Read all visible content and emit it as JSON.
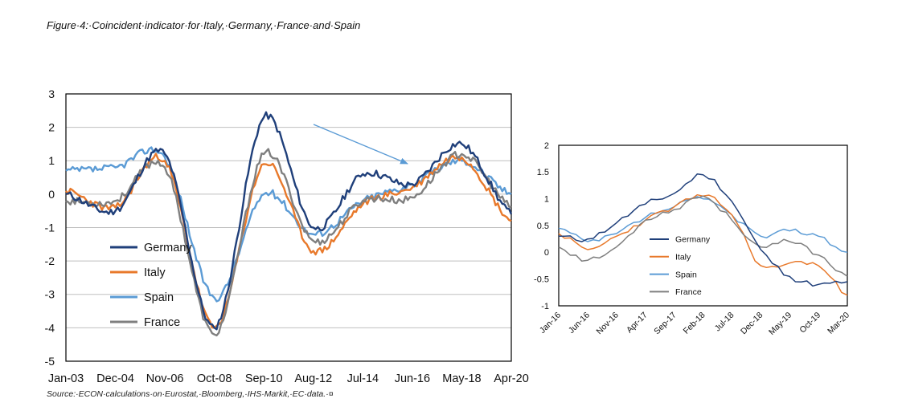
{
  "figure": {
    "title": "Figure·4:·Coincident·indicator·for·Italy,·Germany,·France·and·Spain",
    "source": "Source:·ECON·calculations·on·Eurostat,·Bloomberg,·IHS·Markit,·EC·data.·¤"
  },
  "colors": {
    "Germany": "#1f3f7a",
    "Italy": "#e8792b",
    "Spain": "#5b9bd5",
    "France": "#7f7f7f",
    "arrow": "#5b9bd5"
  },
  "chart_data": [
    {
      "type": "line",
      "title": "",
      "xlabel": "",
      "ylabel": "",
      "x": [
        "Jan-03",
        "Dec-04",
        "Nov-06",
        "Oct-08",
        "Sep-10",
        "Aug-12",
        "Jul-14",
        "Jun-16",
        "May-18",
        "Apr-20"
      ],
      "x_tick_labels": [
        "Jan-03",
        "Dec-04",
        "Nov-06",
        "Oct-08",
        "Sep-10",
        "Aug-12",
        "Jul-14",
        "Jun-16",
        "May-18",
        "Apr-20"
      ],
      "ylim": [
        -5,
        3
      ],
      "y_ticks": [
        3,
        2,
        1,
        0,
        -1,
        -2,
        -3,
        -4,
        -5
      ],
      "grid": true,
      "legend_position": "left",
      "series": [
        {
          "name": "Germany",
          "values": [
            0.0,
            -0.5,
            1.2,
            -4.0,
            2.3,
            -1.0,
            0.6,
            0.3,
            1.5,
            -0.6
          ]
        },
        {
          "name": "Italy",
          "values": [
            0.1,
            -0.4,
            1.0,
            -4.0,
            0.9,
            -1.7,
            -0.3,
            0.2,
            1.1,
            -0.8
          ]
        },
        {
          "name": "Spain",
          "values": [
            0.7,
            0.8,
            1.1,
            -3.1,
            0.0,
            -1.2,
            -0.2,
            0.3,
            1.0,
            0.0
          ]
        },
        {
          "name": "France",
          "values": [
            -0.2,
            -0.2,
            0.8,
            -4.2,
            1.2,
            -1.4,
            -0.2,
            -0.1,
            1.2,
            -0.4
          ]
        }
      ]
    },
    {
      "type": "line",
      "title": "",
      "xlabel": "",
      "ylabel": "",
      "x": [
        "Jan-16",
        "Jun-16",
        "Nov-16",
        "Apr-17",
        "Sep-17",
        "Feb-18",
        "Jul-18",
        "Dec-18",
        "May-19",
        "Oct-19",
        "Mar-20"
      ],
      "x_tick_labels": [
        "Jan-16",
        "Jun-16",
        "Nov-16",
        "Apr-17",
        "Sep-17",
        "Feb-18",
        "Jul-18",
        "Dec-18",
        "May-19",
        "Oct-19",
        "Mar-20"
      ],
      "ylim": [
        -1,
        2
      ],
      "y_ticks": [
        2,
        1.5,
        1,
        0.5,
        0,
        -0.5,
        -1
      ],
      "grid": false,
      "legend_position": "bottom-left",
      "series": [
        {
          "name": "Germany",
          "values": [
            0.3,
            0.25,
            0.55,
            0.9,
            1.1,
            1.45,
            0.95,
            0.05,
            -0.45,
            -0.6,
            -0.55
          ]
        },
        {
          "name": "Italy",
          "values": [
            0.35,
            0.05,
            0.3,
            0.6,
            0.85,
            1.05,
            0.7,
            -0.25,
            -0.2,
            -0.25,
            -0.8
          ]
        },
        {
          "name": "Spain",
          "values": [
            0.45,
            0.2,
            0.35,
            0.65,
            0.85,
            1.0,
            0.7,
            0.3,
            0.4,
            0.3,
            0.0
          ]
        },
        {
          "name": "France",
          "values": [
            0.1,
            -0.15,
            0.1,
            0.6,
            0.8,
            1.05,
            0.6,
            0.1,
            0.2,
            -0.05,
            -0.45
          ]
        }
      ]
    }
  ]
}
